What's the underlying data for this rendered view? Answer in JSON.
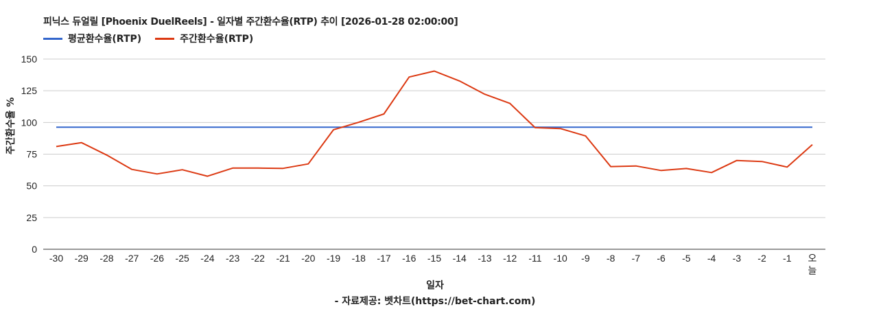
{
  "chart_data": {
    "type": "line",
    "title": "피닉스 듀얼릴 [Phoenix DuelReels] - 일자별 주간환수율(RTP) 추이 [2026-01-28 02:00:00]",
    "xlabel": "일자",
    "ylabel": "주간환수율 %",
    "source": "- 자료제공: 벳차트(https://bet-chart.com)",
    "ylim": [
      0,
      150
    ],
    "yticks": [
      0,
      25,
      50,
      75,
      100,
      125,
      150
    ],
    "grid": true,
    "legend_position": "top-left",
    "categories": [
      "-30",
      "-29",
      "-28",
      "-27",
      "-26",
      "-25",
      "-24",
      "-23",
      "-22",
      "-21",
      "-20",
      "-19",
      "-18",
      "-17",
      "-16",
      "-15",
      "-14",
      "-13",
      "-12",
      "-11",
      "-10",
      "-9",
      "-8",
      "-7",
      "-6",
      "-5",
      "-4",
      "-3",
      "-2",
      "-1",
      "오늘"
    ],
    "series": [
      {
        "name": "평균환수율(RTP)",
        "color": "#3366cc",
        "values": [
          96.3,
          96.3,
          96.3,
          96.3,
          96.3,
          96.3,
          96.3,
          96.3,
          96.3,
          96.3,
          96.3,
          96.3,
          96.3,
          96.3,
          96.3,
          96.3,
          96.3,
          96.3,
          96.3,
          96.3,
          96.3,
          96.3,
          96.3,
          96.3,
          96.3,
          96.3,
          96.3,
          96.3,
          96.3,
          96.3,
          96.3
        ]
      },
      {
        "name": "주간환수율(RTP)",
        "color": "#dc3912",
        "values": [
          81.0,
          84.1,
          74.3,
          63.0,
          59.4,
          62.7,
          57.6,
          64.0,
          64.0,
          63.8,
          67.3,
          94.3,
          100.1,
          106.7,
          135.8,
          140.5,
          132.7,
          122.3,
          115.0,
          95.9,
          95.2,
          89.4,
          65.2,
          65.7,
          62.1,
          63.7,
          60.5,
          70.0,
          69.2,
          64.8,
          82.5
        ]
      }
    ]
  },
  "legend": {
    "items": [
      {
        "label": "평균환수율(RTP)",
        "color": "#3366cc"
      },
      {
        "label": "주간환수율(RTP)",
        "color": "#dc3912"
      }
    ]
  }
}
